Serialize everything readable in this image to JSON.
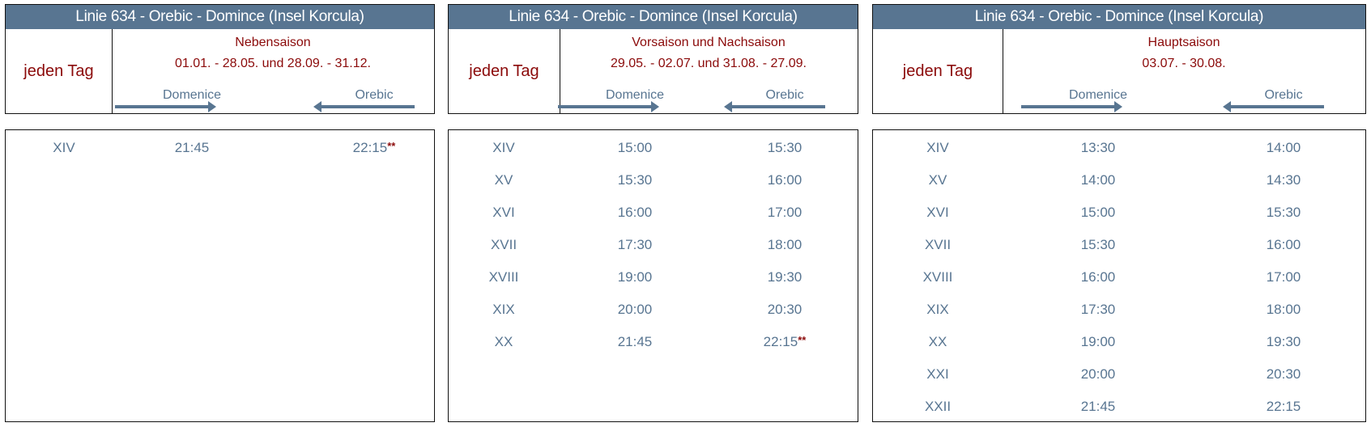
{
  "panels": [
    {
      "title": "Linie 634 - Orebic - Domince (Insel Korcula)",
      "day": "jeden Tag",
      "season": "Nebensaison",
      "dates": "01.01. - 28.05. und 28.09. - 31.12.",
      "dir_right": "Domenice",
      "dir_left": "Orebic",
      "rows": [
        {
          "num": "XIV",
          "dep": "21:45",
          "ret": "22:15",
          "mark": "**"
        }
      ]
    },
    {
      "title": "Linie 634 - Orebic - Domince (Insel Korcula)",
      "day": "jeden Tag",
      "season": "Vorsaison und Nachsaison",
      "dates": "29.05. - 02.07. und 31.08. - 27.09.",
      "dir_right": "Domenice",
      "dir_left": "Orebic",
      "rows": [
        {
          "num": "XIV",
          "dep": "15:00",
          "ret": "15:30"
        },
        {
          "num": "XV",
          "dep": "15:30",
          "ret": "16:00"
        },
        {
          "num": "XVI",
          "dep": "16:00",
          "ret": "17:00"
        },
        {
          "num": "XVII",
          "dep": "17:30",
          "ret": "18:00"
        },
        {
          "num": "XVIII",
          "dep": "19:00",
          "ret": "19:30"
        },
        {
          "num": "XIX",
          "dep": "20:00",
          "ret": "20:30"
        },
        {
          "num": "XX",
          "dep": "21:45",
          "ret": "22:15",
          "mark": "**"
        }
      ]
    },
    {
      "title": "Linie 634 - Orebic - Domince (Insel Korcula)",
      "day": "jeden Tag",
      "season": "Hauptsaison",
      "dates": "03.07. - 30.08.",
      "dir_right": "Domenice",
      "dir_left": "Orebic",
      "rows": [
        {
          "num": "XIV",
          "dep": "13:30",
          "ret": "14:00"
        },
        {
          "num": "XV",
          "dep": "14:00",
          "ret": "14:30"
        },
        {
          "num": "XVI",
          "dep": "15:00",
          "ret": "15:30"
        },
        {
          "num": "XVII",
          "dep": "15:30",
          "ret": "16:00"
        },
        {
          "num": "XVIII",
          "dep": "16:00",
          "ret": "17:00"
        },
        {
          "num": "XIX",
          "dep": "17:30",
          "ret": "18:00"
        },
        {
          "num": "XX",
          "dep": "19:00",
          "ret": "19:30"
        },
        {
          "num": "XXI",
          "dep": "20:00",
          "ret": "20:30"
        },
        {
          "num": "XXII",
          "dep": "21:45",
          "ret": "22:15"
        }
      ]
    }
  ],
  "colors": {
    "header": "#587591",
    "accent": "#8b0a0a",
    "text": "#587591"
  }
}
